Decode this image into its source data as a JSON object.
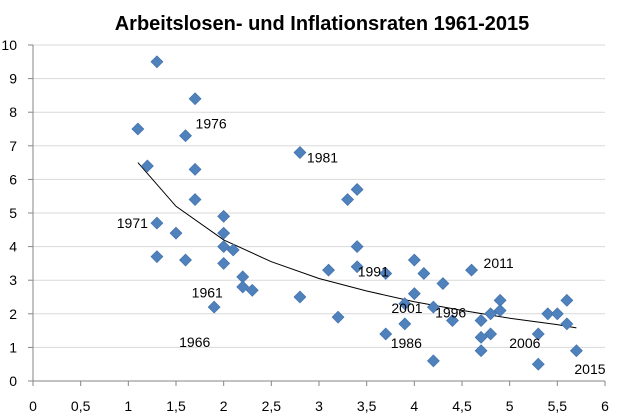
{
  "chart_data": {
    "type": "scatter",
    "title": "Arbeitslosen- und Inflationsraten 1961-2015",
    "xlabel": "",
    "ylabel": "",
    "xlim": [
      0,
      6
    ],
    "ylim": [
      0,
      10
    ],
    "x_ticks": [
      0,
      0.5,
      1,
      1.5,
      2,
      2.5,
      3,
      3.5,
      4,
      4.5,
      5,
      5.5,
      6
    ],
    "x_tick_labels": [
      "0",
      "0,5",
      "1",
      "1,5",
      "2",
      "2,5",
      "3",
      "3,5",
      "4",
      "4,5",
      "5",
      "5,5",
      "6"
    ],
    "y_ticks": [
      0,
      1,
      2,
      3,
      4,
      5,
      6,
      7,
      8,
      9,
      10
    ],
    "y_tick_labels": [
      "0",
      "1",
      "2",
      "3",
      "4",
      "5",
      "6",
      "7",
      "8",
      "9",
      "10"
    ],
    "grid": "horizontal",
    "marker_color": "#4F81BD",
    "trendline_color": "#000000",
    "points": [
      {
        "x": 1.1,
        "y": 7.5
      },
      {
        "x": 1.2,
        "y": 6.4
      },
      {
        "x": 1.3,
        "y": 9.5
      },
      {
        "x": 1.3,
        "y": 4.7
      },
      {
        "x": 1.3,
        "y": 3.7
      },
      {
        "x": 1.5,
        "y": 4.4
      },
      {
        "x": 1.6,
        "y": 7.3
      },
      {
        "x": 1.6,
        "y": 3.6
      },
      {
        "x": 1.7,
        "y": 8.4
      },
      {
        "x": 1.7,
        "y": 6.3
      },
      {
        "x": 1.7,
        "y": 5.4
      },
      {
        "x": 1.9,
        "y": 2.2
      },
      {
        "x": 2.0,
        "y": 4.9
      },
      {
        "x": 2.0,
        "y": 4.4
      },
      {
        "x": 2.0,
        "y": 4.0
      },
      {
        "x": 2.0,
        "y": 3.5
      },
      {
        "x": 2.1,
        "y": 3.9
      },
      {
        "x": 2.2,
        "y": 3.1
      },
      {
        "x": 2.2,
        "y": 2.8
      },
      {
        "x": 2.3,
        "y": 2.7
      },
      {
        "x": 2.8,
        "y": 6.8
      },
      {
        "x": 2.8,
        "y": 2.5
      },
      {
        "x": 3.1,
        "y": 3.3
      },
      {
        "x": 3.2,
        "y": 1.9
      },
      {
        "x": 3.3,
        "y": 5.4
      },
      {
        "x": 3.4,
        "y": 5.7
      },
      {
        "x": 3.4,
        "y": 4.0
      },
      {
        "x": 3.4,
        "y": 3.4
      },
      {
        "x": 3.7,
        "y": 3.2
      },
      {
        "x": 3.7,
        "y": 1.4
      },
      {
        "x": 3.9,
        "y": 2.3
      },
      {
        "x": 3.9,
        "y": 1.7
      },
      {
        "x": 4.0,
        "y": 3.6
      },
      {
        "x": 4.0,
        "y": 2.6
      },
      {
        "x": 4.1,
        "y": 3.2
      },
      {
        "x": 4.2,
        "y": 2.2
      },
      {
        "x": 4.2,
        "y": 0.6
      },
      {
        "x": 4.3,
        "y": 2.9
      },
      {
        "x": 4.4,
        "y": 1.8
      },
      {
        "x": 4.6,
        "y": 3.3
      },
      {
        "x": 4.7,
        "y": 1.8
      },
      {
        "x": 4.7,
        "y": 1.3
      },
      {
        "x": 4.7,
        "y": 0.9
      },
      {
        "x": 4.8,
        "y": 2.0
      },
      {
        "x": 4.8,
        "y": 1.4
      },
      {
        "x": 4.9,
        "y": 2.4
      },
      {
        "x": 4.9,
        "y": 2.1
      },
      {
        "x": 5.3,
        "y": 1.4
      },
      {
        "x": 5.3,
        "y": 0.5
      },
      {
        "x": 5.4,
        "y": 2.0
      },
      {
        "x": 5.5,
        "y": 2.0
      },
      {
        "x": 5.6,
        "y": 2.4
      },
      {
        "x": 5.6,
        "y": 1.7
      },
      {
        "x": 5.7,
        "y": 0.9
      }
    ],
    "trendline": {
      "type": "power",
      "points": [
        {
          "x": 1.1,
          "y": 6.5
        },
        {
          "x": 1.5,
          "y": 5.2
        },
        {
          "x": 2.0,
          "y": 4.2
        },
        {
          "x": 2.5,
          "y": 3.55
        },
        {
          "x": 3.0,
          "y": 3.05
        },
        {
          "x": 3.5,
          "y": 2.68
        },
        {
          "x": 4.0,
          "y": 2.36
        },
        {
          "x": 4.5,
          "y": 2.1
        },
        {
          "x": 5.0,
          "y": 1.87
        },
        {
          "x": 5.5,
          "y": 1.68
        },
        {
          "x": 5.7,
          "y": 1.58
        }
      ]
    },
    "annotations": [
      {
        "text": "1976",
        "x": 1.6,
        "y": 7.3
      },
      {
        "text": "1981",
        "x": 2.8,
        "y": 6.8
      },
      {
        "text": "1971",
        "x": 1.3,
        "y": 4.7
      },
      {
        "text": "1961",
        "x": 2.0,
        "y": 3.5
      },
      {
        "text": "1966",
        "x": 1.9,
        "y": 2.2
      },
      {
        "text": "1991",
        "x": 3.7,
        "y": 3.2
      },
      {
        "text": "2011",
        "x": 4.6,
        "y": 3.3
      },
      {
        "text": "1996",
        "x": 4.7,
        "y": 1.8
      },
      {
        "text": "2001",
        "x": 4.2,
        "y": 2.2
      },
      {
        "text": "1986",
        "x": 3.7,
        "y": 1.4
      },
      {
        "text": "2006",
        "x": 5.3,
        "y": 1.4
      },
      {
        "text": "2015",
        "x": 5.7,
        "y": 0.9
      }
    ]
  }
}
